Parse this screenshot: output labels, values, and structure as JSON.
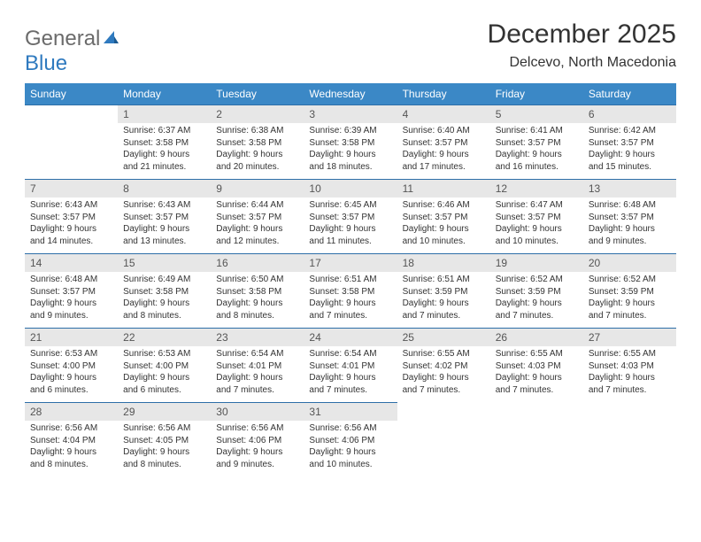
{
  "brand": {
    "name_part1": "General",
    "name_part2": "Blue"
  },
  "title": "December 2025",
  "location": "Delcevo, North Macedonia",
  "header_bg": "#3b88c6",
  "row_border": "#2d6ea8",
  "daynum_bg": "#e7e7e7",
  "days_of_week": [
    "Sunday",
    "Monday",
    "Tuesday",
    "Wednesday",
    "Thursday",
    "Friday",
    "Saturday"
  ],
  "weeks": [
    [
      null,
      {
        "n": "1",
        "sr": "6:37 AM",
        "ss": "3:58 PM",
        "dl": "9 hours and 21 minutes."
      },
      {
        "n": "2",
        "sr": "6:38 AM",
        "ss": "3:58 PM",
        "dl": "9 hours and 20 minutes."
      },
      {
        "n": "3",
        "sr": "6:39 AM",
        "ss": "3:58 PM",
        "dl": "9 hours and 18 minutes."
      },
      {
        "n": "4",
        "sr": "6:40 AM",
        "ss": "3:57 PM",
        "dl": "9 hours and 17 minutes."
      },
      {
        "n": "5",
        "sr": "6:41 AM",
        "ss": "3:57 PM",
        "dl": "9 hours and 16 minutes."
      },
      {
        "n": "6",
        "sr": "6:42 AM",
        "ss": "3:57 PM",
        "dl": "9 hours and 15 minutes."
      }
    ],
    [
      {
        "n": "7",
        "sr": "6:43 AM",
        "ss": "3:57 PM",
        "dl": "9 hours and 14 minutes."
      },
      {
        "n": "8",
        "sr": "6:43 AM",
        "ss": "3:57 PM",
        "dl": "9 hours and 13 minutes."
      },
      {
        "n": "9",
        "sr": "6:44 AM",
        "ss": "3:57 PM",
        "dl": "9 hours and 12 minutes."
      },
      {
        "n": "10",
        "sr": "6:45 AM",
        "ss": "3:57 PM",
        "dl": "9 hours and 11 minutes."
      },
      {
        "n": "11",
        "sr": "6:46 AM",
        "ss": "3:57 PM",
        "dl": "9 hours and 10 minutes."
      },
      {
        "n": "12",
        "sr": "6:47 AM",
        "ss": "3:57 PM",
        "dl": "9 hours and 10 minutes."
      },
      {
        "n": "13",
        "sr": "6:48 AM",
        "ss": "3:57 PM",
        "dl": "9 hours and 9 minutes."
      }
    ],
    [
      {
        "n": "14",
        "sr": "6:48 AM",
        "ss": "3:57 PM",
        "dl": "9 hours and 9 minutes."
      },
      {
        "n": "15",
        "sr": "6:49 AM",
        "ss": "3:58 PM",
        "dl": "9 hours and 8 minutes."
      },
      {
        "n": "16",
        "sr": "6:50 AM",
        "ss": "3:58 PM",
        "dl": "9 hours and 8 minutes."
      },
      {
        "n": "17",
        "sr": "6:51 AM",
        "ss": "3:58 PM",
        "dl": "9 hours and 7 minutes."
      },
      {
        "n": "18",
        "sr": "6:51 AM",
        "ss": "3:59 PM",
        "dl": "9 hours and 7 minutes."
      },
      {
        "n": "19",
        "sr": "6:52 AM",
        "ss": "3:59 PM",
        "dl": "9 hours and 7 minutes."
      },
      {
        "n": "20",
        "sr": "6:52 AM",
        "ss": "3:59 PM",
        "dl": "9 hours and 7 minutes."
      }
    ],
    [
      {
        "n": "21",
        "sr": "6:53 AM",
        "ss": "4:00 PM",
        "dl": "9 hours and 6 minutes."
      },
      {
        "n": "22",
        "sr": "6:53 AM",
        "ss": "4:00 PM",
        "dl": "9 hours and 6 minutes."
      },
      {
        "n": "23",
        "sr": "6:54 AM",
        "ss": "4:01 PM",
        "dl": "9 hours and 7 minutes."
      },
      {
        "n": "24",
        "sr": "6:54 AM",
        "ss": "4:01 PM",
        "dl": "9 hours and 7 minutes."
      },
      {
        "n": "25",
        "sr": "6:55 AM",
        "ss": "4:02 PM",
        "dl": "9 hours and 7 minutes."
      },
      {
        "n": "26",
        "sr": "6:55 AM",
        "ss": "4:03 PM",
        "dl": "9 hours and 7 minutes."
      },
      {
        "n": "27",
        "sr": "6:55 AM",
        "ss": "4:03 PM",
        "dl": "9 hours and 7 minutes."
      }
    ],
    [
      {
        "n": "28",
        "sr": "6:56 AM",
        "ss": "4:04 PM",
        "dl": "9 hours and 8 minutes."
      },
      {
        "n": "29",
        "sr": "6:56 AM",
        "ss": "4:05 PM",
        "dl": "9 hours and 8 minutes."
      },
      {
        "n": "30",
        "sr": "6:56 AM",
        "ss": "4:06 PM",
        "dl": "9 hours and 9 minutes."
      },
      {
        "n": "31",
        "sr": "6:56 AM",
        "ss": "4:06 PM",
        "dl": "9 hours and 10 minutes."
      },
      null,
      null,
      null
    ]
  ],
  "labels": {
    "sunrise": "Sunrise: ",
    "sunset": "Sunset: ",
    "daylight": "Daylight: "
  }
}
